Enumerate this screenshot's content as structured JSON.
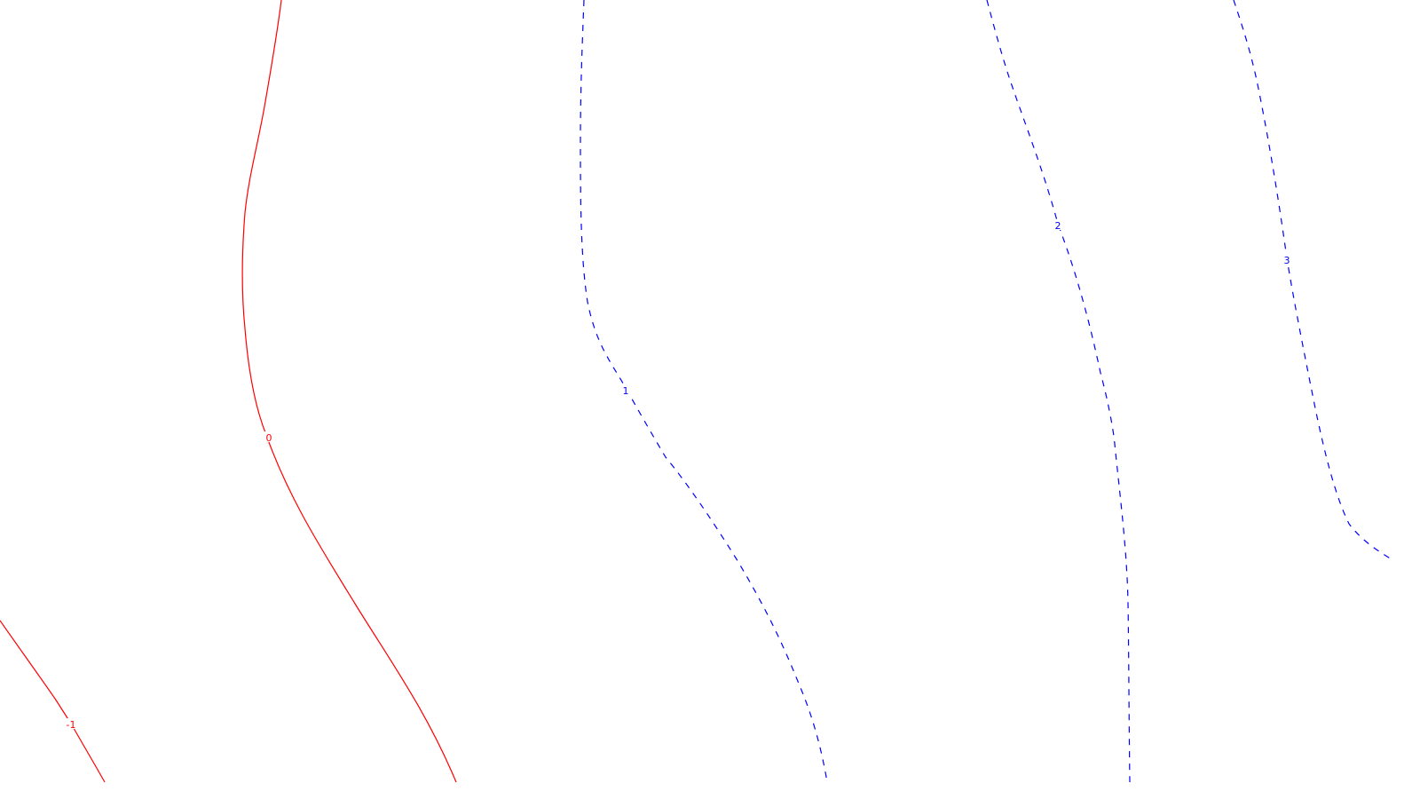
{
  "chart_data": {
    "type": "contour",
    "colors": {
      "negative_and_zero": "#ff0000",
      "positive": "#0000ff",
      "background": "#ffffff"
    },
    "line_styles": {
      "negative_and_zero": "solid",
      "positive": "dashed"
    },
    "levels": [
      {
        "value": -1,
        "label": "-1"
      },
      {
        "value": 0,
        "label": "0"
      },
      {
        "value": 1,
        "label": "1"
      },
      {
        "value": 2,
        "label": "2"
      },
      {
        "value": 3,
        "label": "3"
      }
    ],
    "grid": false,
    "legend": "none"
  }
}
